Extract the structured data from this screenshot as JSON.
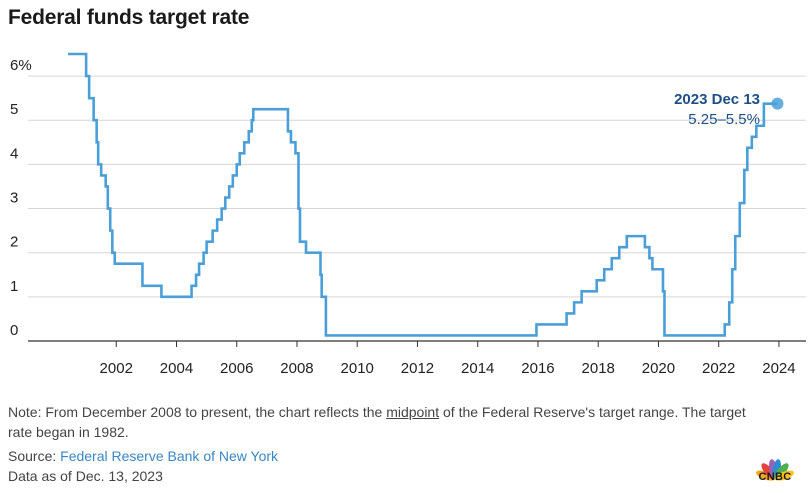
{
  "title": "Federal funds target rate",
  "chart_data": {
    "type": "line",
    "step": true,
    "title": "Federal funds target rate",
    "xlabel": "",
    "ylabel": "",
    "ylim": [
      0,
      6.5
    ],
    "xlim": [
      2000,
      2024.5
    ],
    "grid": true,
    "y_ticks": [
      0,
      1,
      2,
      3,
      4,
      5,
      6
    ],
    "y_tick_labels": [
      "0",
      "1",
      "2",
      "3",
      "4",
      "5",
      "6%"
    ],
    "x_ticks": [
      2002,
      2004,
      2006,
      2008,
      2010,
      2012,
      2014,
      2016,
      2018,
      2020,
      2022,
      2024
    ],
    "x_tick_labels": [
      "2002",
      "2004",
      "2006",
      "2008",
      "2010",
      "2012",
      "2014",
      "2016",
      "2018",
      "2020",
      "2022",
      "2024"
    ],
    "series": [
      {
        "name": "Federal funds target rate",
        "color": "#4a9fd8",
        "points": [
          [
            2000.4,
            6.5
          ],
          [
            2001.0,
            6.0
          ],
          [
            2001.1,
            5.5
          ],
          [
            2001.25,
            5.0
          ],
          [
            2001.35,
            4.5
          ],
          [
            2001.4,
            4.0
          ],
          [
            2001.5,
            3.75
          ],
          [
            2001.65,
            3.5
          ],
          [
            2001.72,
            3.0
          ],
          [
            2001.8,
            2.5
          ],
          [
            2001.87,
            2.0
          ],
          [
            2001.95,
            1.75
          ],
          [
            2002.87,
            1.25
          ],
          [
            2003.5,
            1.0
          ],
          [
            2004.5,
            1.25
          ],
          [
            2004.65,
            1.5
          ],
          [
            2004.75,
            1.75
          ],
          [
            2004.9,
            2.0
          ],
          [
            2005.0,
            2.25
          ],
          [
            2005.2,
            2.5
          ],
          [
            2005.35,
            2.75
          ],
          [
            2005.5,
            3.0
          ],
          [
            2005.62,
            3.25
          ],
          [
            2005.75,
            3.5
          ],
          [
            2005.87,
            3.75
          ],
          [
            2006.0,
            4.0
          ],
          [
            2006.1,
            4.25
          ],
          [
            2006.25,
            4.5
          ],
          [
            2006.4,
            4.75
          ],
          [
            2006.5,
            5.0
          ],
          [
            2006.55,
            5.25
          ],
          [
            2007.7,
            4.75
          ],
          [
            2007.8,
            4.5
          ],
          [
            2007.95,
            4.25
          ],
          [
            2008.05,
            3.0
          ],
          [
            2008.1,
            2.25
          ],
          [
            2008.3,
            2.0
          ],
          [
            2008.78,
            1.5
          ],
          [
            2008.82,
            1.0
          ],
          [
            2008.96,
            0.125
          ],
          [
            2015.95,
            0.375
          ],
          [
            2016.95,
            0.625
          ],
          [
            2017.2,
            0.875
          ],
          [
            2017.45,
            1.125
          ],
          [
            2017.95,
            1.375
          ],
          [
            2018.2,
            1.625
          ],
          [
            2018.45,
            1.875
          ],
          [
            2018.7,
            2.125
          ],
          [
            2018.95,
            2.375
          ],
          [
            2019.55,
            2.125
          ],
          [
            2019.7,
            1.875
          ],
          [
            2019.8,
            1.625
          ],
          [
            2020.15,
            1.125
          ],
          [
            2020.2,
            0.125
          ],
          [
            2022.2,
            0.375
          ],
          [
            2022.35,
            0.875
          ],
          [
            2022.45,
            1.625
          ],
          [
            2022.55,
            2.375
          ],
          [
            2022.7,
            3.125
          ],
          [
            2022.85,
            3.875
          ],
          [
            2022.95,
            4.375
          ],
          [
            2023.1,
            4.625
          ],
          [
            2023.25,
            4.875
          ],
          [
            2023.5,
            5.375
          ],
          [
            2023.95,
            5.375
          ]
        ]
      }
    ],
    "annotation": {
      "x": 2023.95,
      "y": 5.375,
      "date": "2023 Dec 13",
      "range": "5.25–5.5%"
    }
  },
  "note": {
    "before": "Note: From December 2008 to present, the chart reflects the ",
    "underlined": "midpoint",
    "after": " of the Federal Reserve's target range. The target rate began in 1982."
  },
  "source": {
    "prefix": "Source: ",
    "link": "Federal Reserve Bank of New York"
  },
  "as_of": "Data as of Dec. 13, 2023",
  "logo": {
    "text": "CNBC",
    "peacock_colors": [
      "#f5a623",
      "#e8423f",
      "#a05fb5",
      "#2e8ccf",
      "#4caf50",
      "#f7c11e"
    ]
  }
}
